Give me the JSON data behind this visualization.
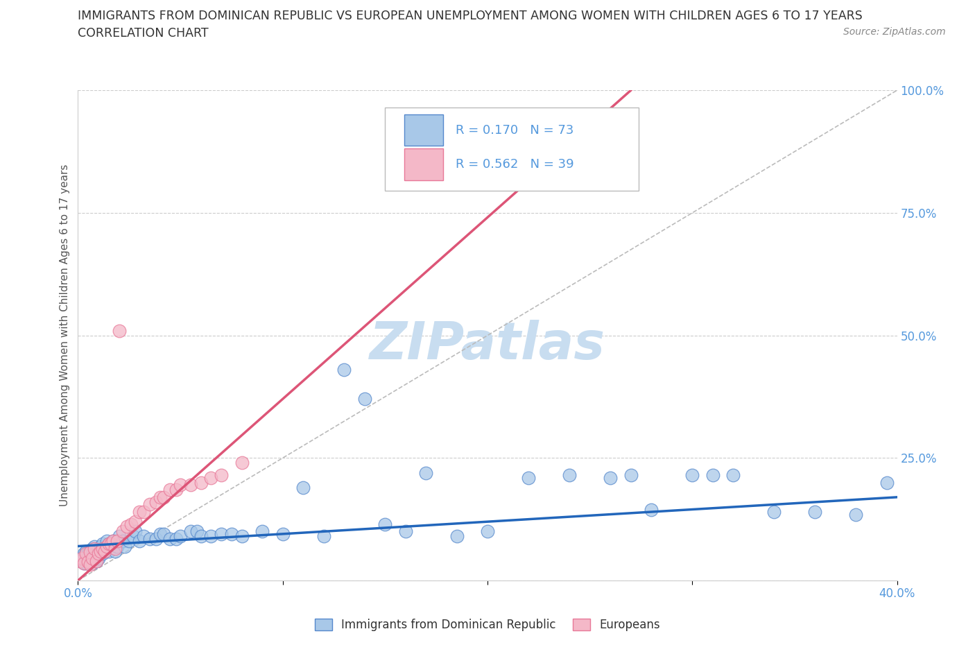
{
  "title_line1": "IMMIGRANTS FROM DOMINICAN REPUBLIC VS EUROPEAN UNEMPLOYMENT AMONG WOMEN WITH CHILDREN AGES 6 TO 17 YEARS",
  "title_line2": "CORRELATION CHART",
  "source_text": "Source: ZipAtlas.com",
  "ylabel": "Unemployment Among Women with Children Ages 6 to 17 years",
  "xlim": [
    0.0,
    0.4
  ],
  "ylim": [
    0.0,
    1.0
  ],
  "blue_color": "#a8c8e8",
  "pink_color": "#f4b8c8",
  "blue_edge": "#5588cc",
  "pink_edge": "#e87898",
  "trend_blue": "#2266bb",
  "trend_pink": "#dd5577",
  "diag_color": "#bbbbbb",
  "r_blue": 0.17,
  "n_blue": 73,
  "r_pink": 0.562,
  "n_pink": 39,
  "watermark": "ZIPatlas",
  "watermark_color": "#c8ddf0",
  "grid_color": "#cccccc",
  "tick_color": "#5599dd",
  "blue_scatter_x": [
    0.001,
    0.002,
    0.003,
    0.003,
    0.004,
    0.004,
    0.005,
    0.005,
    0.006,
    0.007,
    0.007,
    0.008,
    0.008,
    0.009,
    0.009,
    0.01,
    0.01,
    0.011,
    0.012,
    0.012,
    0.013,
    0.014,
    0.015,
    0.015,
    0.016,
    0.017,
    0.018,
    0.019,
    0.02,
    0.022,
    0.023,
    0.025,
    0.027,
    0.028,
    0.03,
    0.032,
    0.035,
    0.038,
    0.04,
    0.042,
    0.045,
    0.048,
    0.05,
    0.055,
    0.058,
    0.06,
    0.065,
    0.07,
    0.075,
    0.08,
    0.09,
    0.1,
    0.11,
    0.12,
    0.13,
    0.14,
    0.15,
    0.16,
    0.17,
    0.185,
    0.2,
    0.22,
    0.24,
    0.26,
    0.28,
    0.3,
    0.32,
    0.34,
    0.36,
    0.38,
    0.27,
    0.31,
    0.395
  ],
  "blue_scatter_y": [
    0.045,
    0.04,
    0.035,
    0.055,
    0.035,
    0.06,
    0.04,
    0.055,
    0.045,
    0.035,
    0.065,
    0.05,
    0.07,
    0.04,
    0.06,
    0.045,
    0.065,
    0.07,
    0.055,
    0.075,
    0.06,
    0.08,
    0.06,
    0.075,
    0.075,
    0.08,
    0.06,
    0.07,
    0.09,
    0.08,
    0.07,
    0.08,
    0.09,
    0.1,
    0.08,
    0.09,
    0.085,
    0.085,
    0.095,
    0.095,
    0.085,
    0.085,
    0.09,
    0.1,
    0.1,
    0.09,
    0.09,
    0.095,
    0.095,
    0.09,
    0.1,
    0.095,
    0.19,
    0.09,
    0.43,
    0.37,
    0.115,
    0.1,
    0.22,
    0.09,
    0.1,
    0.21,
    0.215,
    0.21,
    0.145,
    0.215,
    0.215,
    0.14,
    0.14,
    0.135,
    0.215,
    0.215,
    0.2
  ],
  "pink_scatter_x": [
    0.001,
    0.002,
    0.003,
    0.004,
    0.005,
    0.006,
    0.006,
    0.007,
    0.008,
    0.009,
    0.01,
    0.011,
    0.012,
    0.013,
    0.014,
    0.015,
    0.016,
    0.017,
    0.018,
    0.019,
    0.02,
    0.022,
    0.024,
    0.026,
    0.028,
    0.03,
    0.032,
    0.035,
    0.038,
    0.04,
    0.042,
    0.045,
    0.048,
    0.05,
    0.055,
    0.06,
    0.065,
    0.07,
    0.08
  ],
  "pink_scatter_y": [
    0.04,
    0.045,
    0.035,
    0.055,
    0.038,
    0.032,
    0.058,
    0.045,
    0.065,
    0.04,
    0.055,
    0.06,
    0.065,
    0.06,
    0.07,
    0.075,
    0.075,
    0.08,
    0.065,
    0.08,
    0.51,
    0.1,
    0.11,
    0.115,
    0.12,
    0.14,
    0.14,
    0.155,
    0.16,
    0.17,
    0.17,
    0.185,
    0.185,
    0.195,
    0.195,
    0.2,
    0.21,
    0.215,
    0.24
  ],
  "pink_trendline_x": [
    0.0,
    0.27
  ],
  "pink_trendline_y": [
    0.0,
    1.0
  ],
  "blue_trendline_x": [
    0.0,
    0.4
  ],
  "blue_trendline_y": [
    0.07,
    0.17
  ]
}
